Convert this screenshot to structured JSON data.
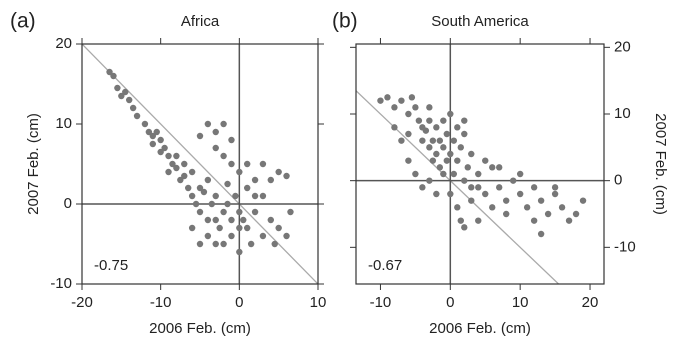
{
  "chart_data": [
    {
      "type": "scatter",
      "panel_label": "(a)",
      "title": "Africa",
      "annotation": "-0.75",
      "xlabel": "2006 Feb. (cm)",
      "ylabel": "2007 Feb. (cm)",
      "y_axis_side": "left",
      "color": "#777777",
      "xlim": [
        -20,
        10
      ],
      "ylim": [
        -10,
        20
      ],
      "xticks": [
        -20,
        -10,
        0,
        10
      ],
      "yticks": [
        -10,
        0,
        10,
        20
      ],
      "x": [
        -16.5,
        -16,
        -15.5,
        -15,
        -14.5,
        -14,
        -13.5,
        -13,
        -12,
        -11.5,
        -11,
        -11,
        -10.5,
        -10,
        -10,
        -9.5,
        -9,
        -9,
        -8.5,
        -8,
        -8,
        -7.5,
        -7,
        -7,
        -6.5,
        -6,
        -6,
        -5.5,
        -5,
        -5,
        -4.5,
        -4,
        -4,
        -3.5,
        -3,
        -3,
        -2.5,
        -2,
        -2,
        -1.5,
        -1,
        -1,
        -0.5,
        0,
        0,
        0.5,
        1,
        1.5,
        2,
        3,
        4,
        5,
        6,
        -4,
        -3,
        -2,
        -1,
        -3,
        -5,
        -2,
        -1,
        0,
        1,
        2,
        3,
        4,
        5,
        6,
        3,
        2,
        -6,
        -5,
        -3,
        0,
        -4,
        1,
        -1.5,
        6.5,
        4.5
      ],
      "values": [
        16.5,
        16,
        14.5,
        13.5,
        14,
        13,
        12,
        11,
        10,
        9,
        8.5,
        7.5,
        9,
        8,
        6.5,
        7,
        6,
        4,
        5,
        6,
        4.5,
        3,
        5,
        3.5,
        2,
        4,
        1,
        0,
        2,
        -1,
        1.5,
        -2,
        3,
        0,
        -2,
        1,
        -3,
        -1,
        -5,
        0,
        -2,
        -4,
        1,
        -1,
        -3,
        -2,
        -3,
        -5,
        -1,
        -4,
        -2,
        -3,
        -4,
        10,
        9,
        10,
        8,
        7,
        8.5,
        6,
        5,
        4,
        2,
        3,
        5,
        3,
        4,
        3.5,
        1,
        1,
        -3,
        -5,
        -5,
        -6,
        -4,
        5,
        2.5,
        -1,
        -5
      ]
    },
    {
      "type": "scatter",
      "panel_label": "(b)",
      "title": "South America",
      "annotation": "-0.67",
      "xlabel": "2006 Feb. (cm)",
      "ylabel": "2007 Feb. (cm)",
      "y_axis_side": "right",
      "color": "#777777",
      "xlim": [
        -13.5,
        22
      ],
      "ylim": [
        -15.5,
        20.5
      ],
      "xticks": [
        -10,
        0,
        10,
        20
      ],
      "yticks": [
        -10,
        0,
        10,
        20
      ],
      "x": [
        -10,
        -9,
        -8,
        -7,
        -6,
        -5.5,
        -5,
        -4.5,
        -4,
        -4,
        -3.5,
        -3,
        -3,
        -2.5,
        -2.5,
        -2,
        -2,
        -1.5,
        -1.5,
        -1,
        -1,
        -0.5,
        -0.5,
        0,
        0,
        0.5,
        0.5,
        1,
        1,
        1.5,
        2,
        2,
        2.5,
        3,
        3,
        -8,
        -7,
        -6,
        -5,
        -4,
        -3,
        -2,
        -1,
        0,
        1,
        1.5,
        2,
        3,
        4,
        5,
        6,
        7,
        8,
        9,
        10,
        11,
        12,
        13,
        14,
        15,
        16,
        17,
        18,
        19,
        10,
        12,
        15,
        8,
        6,
        4,
        5,
        7,
        -6,
        -3,
        2,
        4,
        13
      ],
      "values": [
        12,
        12.5,
        11,
        12,
        10,
        12.5,
        11,
        9,
        8,
        6,
        7.5,
        5,
        9,
        6,
        3,
        4,
        8,
        2,
        6,
        5,
        9,
        3,
        7,
        10,
        4,
        6,
        1,
        8,
        3,
        5,
        9,
        0,
        2,
        -1,
        4,
        8,
        6,
        3,
        1,
        -1,
        0,
        -2,
        1,
        -2,
        -4,
        -6,
        -7,
        -3,
        -1,
        -2,
        2,
        -1,
        -3,
        0,
        -2,
        -4,
        -1,
        -3,
        -5,
        -2,
        -4,
        -6,
        -5,
        -3,
        1,
        -6,
        -1,
        -5,
        -4,
        -6,
        3,
        2,
        7,
        11,
        7,
        1,
        -8
      ]
    }
  ]
}
